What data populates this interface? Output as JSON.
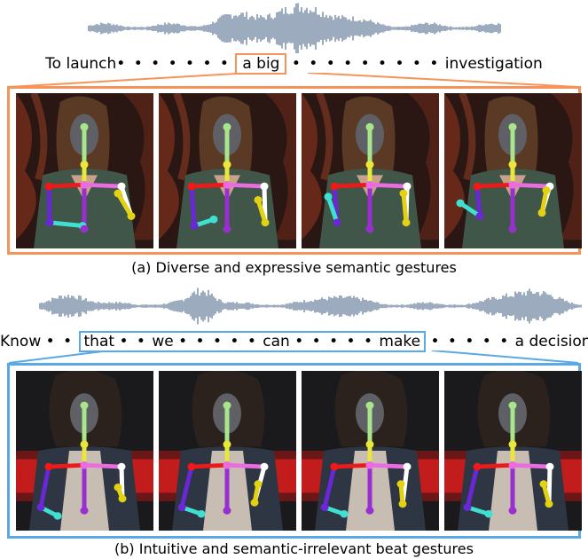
{
  "colors": {
    "waveform": "#8396ad",
    "accent_a": "#f5935a",
    "accent_b": "#5aa8e6",
    "skeleton_head": "#a9e58a",
    "skeleton_neck": "#e9e73b",
    "skeleton_torso": "#9a2fd0",
    "skeleton_shoulder_l": "#ee1a1a",
    "skeleton_shoulder_r": "#ea6ce0",
    "skeleton_arm_l": "#6a27d6",
    "skeleton_forearm_l": "#3fe0d0",
    "skeleton_arm_r": "#ffffff",
    "skeleton_hand_r": "#e3d113",
    "face_mask": "#5f6065"
  },
  "section_a": {
    "sentence": {
      "start": "To launch",
      "mid_dots": "• • • • • • •",
      "boxed": "a  big",
      "end_dots": "• • • • • • • • •",
      "end": "investigation"
    },
    "caption": "(a) Diverse and expressive semantic gestures",
    "frames": [
      {
        "name": "frame-a1"
      },
      {
        "name": "frame-a2"
      },
      {
        "name": "frame-a3"
      },
      {
        "name": "frame-a4"
      }
    ]
  },
  "section_b": {
    "sentence": {
      "start": "Know",
      "d1": "• •",
      "w1": "that",
      "d2": "• •",
      "w2": "we",
      "d3": "• • • • •",
      "w3": "can",
      "d4": "• • • • •",
      "w4": "make",
      "d5": "• • • • •",
      "end": "a decision"
    },
    "caption": "(b) Intuitive and semantic-irrelevant beat gestures",
    "frames": [
      {
        "name": "frame-b1"
      },
      {
        "name": "frame-b2"
      },
      {
        "name": "frame-b3"
      },
      {
        "name": "frame-b4"
      }
    ]
  }
}
